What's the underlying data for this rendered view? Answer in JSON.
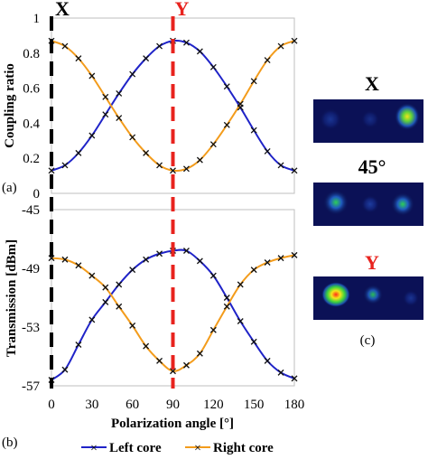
{
  "chart_data": [
    {
      "type": "line",
      "panel_label": "(a)",
      "ylabel": "Coupling ratio",
      "yticks": [
        "0",
        "0.2",
        "0.4",
        "0.6",
        "0.8",
        "1"
      ],
      "ytick_values": [
        0,
        0.2,
        0.4,
        0.6,
        0.8,
        1.0
      ],
      "ylim": [
        0,
        1.0
      ],
      "xlim": [
        0,
        180
      ],
      "x": [
        0,
        10,
        20,
        30,
        40,
        50,
        60,
        70,
        80,
        90,
        100,
        110,
        120,
        130,
        140,
        150,
        160,
        170,
        180
      ],
      "series": [
        {
          "name": "Left core",
          "color": "#1f23c8",
          "values": [
            0.13,
            0.16,
            0.23,
            0.33,
            0.45,
            0.57,
            0.68,
            0.77,
            0.84,
            0.87,
            0.86,
            0.81,
            0.72,
            0.61,
            0.49,
            0.36,
            0.24,
            0.16,
            0.13
          ]
        },
        {
          "name": "Right core",
          "color": "#f39c1c",
          "values": [
            0.87,
            0.84,
            0.77,
            0.67,
            0.55,
            0.43,
            0.32,
            0.23,
            0.16,
            0.13,
            0.14,
            0.19,
            0.28,
            0.39,
            0.51,
            0.64,
            0.76,
            0.84,
            0.87
          ]
        }
      ]
    },
    {
      "type": "line",
      "panel_label": "(b)",
      "ylabel": "Transmission [dBm]",
      "xlabel": "Polarization angle [°]",
      "yticks": [
        "-45",
        "-49",
        "-53",
        "-57"
      ],
      "ytick_values": [
        -45,
        -49,
        -53,
        -57
      ],
      "ylim": [
        -57,
        -45
      ],
      "xlim": [
        0,
        180
      ],
      "xticks": [
        "0",
        "30",
        "60",
        "90",
        "120",
        "150",
        "180"
      ],
      "xtick_values": [
        0,
        30,
        60,
        90,
        120,
        150,
        180
      ],
      "x": [
        0,
        10,
        20,
        30,
        40,
        50,
        60,
        70,
        80,
        90,
        100,
        110,
        120,
        130,
        140,
        150,
        160,
        170,
        180
      ],
      "series": [
        {
          "name": "Left core",
          "color": "#1f23c8",
          "values": [
            -56.6,
            -55.9,
            -54.2,
            -52.5,
            -51.3,
            -50.1,
            -49.1,
            -48.4,
            -48.0,
            -47.8,
            -47.8,
            -48.5,
            -49.5,
            -51.0,
            -52.6,
            -54.0,
            -55.3,
            -56.1,
            -56.5
          ]
        },
        {
          "name": "Right core",
          "color": "#f39c1c",
          "values": [
            -48.3,
            -48.4,
            -48.8,
            -49.5,
            -50.3,
            -51.6,
            -52.9,
            -54.3,
            -55.3,
            -56.0,
            -55.6,
            -54.8,
            -53.2,
            -51.6,
            -50.1,
            -49.1,
            -48.6,
            -48.3,
            -48.1
          ]
        }
      ]
    }
  ],
  "markers": [
    {
      "label": "X",
      "angle": 0,
      "color": "#000000"
    },
    {
      "label": "Y",
      "angle": 90,
      "color": "#e8231e"
    }
  ],
  "legend": {
    "placement": "bottom",
    "items": [
      "Left core",
      "Right core"
    ]
  },
  "insets": {
    "panel_label": "(c)",
    "items": [
      {
        "label": "X",
        "color": "#000000"
      },
      {
        "label": "45°",
        "color": "#000000"
      },
      {
        "label": "Y",
        "color": "#e8231e"
      }
    ]
  }
}
